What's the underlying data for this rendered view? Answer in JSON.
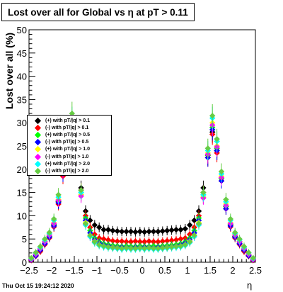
{
  "chart_data": {
    "type": "scatter",
    "title": "Lost over all for Global vs   η at pT > 0.11",
    "xlabel": "η",
    "ylabel": "Lost over all (%)",
    "xlim": [
      -2.5,
      2.5
    ],
    "ylim": [
      0,
      50
    ],
    "x_ticks": [
      "−2.5",
      "−2",
      "−1.5",
      "−1",
      "−0.5",
      "0",
      "0.5",
      "1",
      "1.5",
      "2",
      "2.5"
    ],
    "y_ticks": [
      "0",
      "5",
      "10",
      "15",
      "20",
      "25",
      "30",
      "35",
      "40",
      "45",
      "50"
    ],
    "legend_position": "left",
    "grid": false,
    "timestamp": "Thu Oct 15 19:24:12 2020",
    "series": [
      {
        "name": "(+) with pT/|q| > 0.1",
        "color": "#000000",
        "x": [
          -2.45,
          -2.35,
          -2.25,
          -2.15,
          -2.05,
          -1.95,
          -1.85,
          -1.75,
          -1.65,
          -1.55,
          -1.45,
          -1.35,
          -1.25,
          -1.15,
          -1.05,
          -0.95,
          -0.85,
          -0.75,
          -0.65,
          -0.55,
          -0.45,
          -0.35,
          -0.25,
          -0.15,
          -0.05,
          0.05,
          0.15,
          0.25,
          0.35,
          0.45,
          0.55,
          0.65,
          0.75,
          0.85,
          0.95,
          1.05,
          1.15,
          1.25,
          1.35,
          1.45,
          1.55,
          1.65,
          1.75,
          1.85,
          1.95,
          2.05,
          2.15,
          2.25,
          2.35,
          2.45
        ],
        "values": [
          0.5,
          1.5,
          2.5,
          4,
          5.5,
          8,
          13,
          19,
          25,
          28,
          24,
          16,
          11,
          9,
          8,
          7.5,
          7,
          7,
          6.8,
          6.7,
          6.6,
          6.6,
          6.6,
          6.5,
          6.6,
          6.5,
          6.6,
          6.6,
          6.6,
          6.7,
          6.8,
          6.9,
          7,
          7,
          7.2,
          8,
          9,
          11,
          16,
          23,
          28,
          24,
          18,
          12,
          8,
          5.5,
          4,
          2.5,
          1.5,
          0.5
        ]
      },
      {
        "name": "(-) with pT/|q| > 0.1",
        "color": "#ff0000",
        "x": [
          -2.45,
          -2.35,
          -2.25,
          -2.15,
          -2.05,
          -1.95,
          -1.85,
          -1.75,
          -1.65,
          -1.55,
          -1.45,
          -1.35,
          -1.25,
          -1.15,
          -1.05,
          -0.95,
          -0.85,
          -0.75,
          -0.65,
          -0.55,
          -0.45,
          -0.35,
          -0.25,
          -0.15,
          -0.05,
          0.05,
          0.15,
          0.25,
          0.35,
          0.45,
          0.55,
          0.65,
          0.75,
          0.85,
          0.95,
          1.05,
          1.15,
          1.25,
          1.35,
          1.45,
          1.55,
          1.65,
          1.75,
          1.85,
          1.95,
          2.05,
          2.15,
          2.25,
          2.35,
          2.45
        ],
        "values": [
          0.4,
          1.3,
          2.3,
          3.8,
          5.2,
          7.6,
          12.5,
          18.5,
          24.5,
          27.5,
          23.5,
          15.5,
          10,
          7.5,
          6,
          5.2,
          5,
          4.8,
          4.6,
          4.5,
          4.5,
          4.4,
          4.4,
          4.5,
          4.4,
          4.4,
          4.5,
          4.4,
          4.4,
          4.5,
          4.6,
          4.7,
          4.8,
          5,
          5.2,
          6,
          7.5,
          10,
          15,
          22.5,
          27.5,
          23.5,
          17.5,
          11.5,
          7.6,
          5.2,
          3.8,
          2.3,
          1.3,
          0.4
        ]
      },
      {
        "name": "(+) with pT/|q| > 0.5",
        "color": "#00ff00",
        "x": [
          -2.45,
          -2.35,
          -2.25,
          -2.15,
          -2.05,
          -1.95,
          -1.85,
          -1.75,
          -1.65,
          -1.55,
          -1.45,
          -1.35,
          -1.25,
          -1.15,
          -1.05,
          -0.95,
          -0.85,
          -0.75,
          -0.65,
          -0.55,
          -0.45,
          -0.35,
          -0.25,
          -0.15,
          -0.05,
          0.05,
          0.15,
          0.25,
          0.35,
          0.45,
          0.55,
          0.65,
          0.75,
          0.85,
          0.95,
          1.05,
          1.15,
          1.25,
          1.35,
          1.45,
          1.55,
          1.65,
          1.75,
          1.85,
          1.95,
          2.05,
          2.15,
          2.25,
          2.35,
          2.45
        ],
        "values": [
          0.6,
          1.6,
          2.8,
          4.3,
          5.6,
          8.2,
          13.2,
          19.5,
          25.5,
          29,
          24.5,
          15,
          9.5,
          6.8,
          5.2,
          4.4,
          4,
          3.8,
          3.6,
          3.5,
          3.4,
          3.5,
          3.4,
          3.4,
          3.5,
          3.4,
          3.4,
          3.5,
          3.4,
          3.5,
          3.6,
          3.7,
          3.8,
          4,
          4.4,
          5.2,
          6.8,
          9.5,
          14.5,
          23,
          29,
          24.5,
          18,
          12,
          8.2,
          5.6,
          4.3,
          2.8,
          1.6,
          0.6
        ]
      },
      {
        "name": "(-) with pT/|q| > 0.5",
        "color": "#0000ff",
        "x": [
          -2.45,
          -2.35,
          -2.25,
          -2.15,
          -2.05,
          -1.95,
          -1.85,
          -1.75,
          -1.65,
          -1.55,
          -1.45,
          -1.35,
          -1.25,
          -1.15,
          -1.05,
          -0.95,
          -0.85,
          -0.75,
          -0.65,
          -0.55,
          -0.45,
          -0.35,
          -0.25,
          -0.15,
          -0.05,
          0.05,
          0.15,
          0.25,
          0.35,
          0.45,
          0.55,
          0.65,
          0.75,
          0.85,
          0.95,
          1.05,
          1.15,
          1.25,
          1.35,
          1.45,
          1.55,
          1.65,
          1.75,
          1.85,
          1.95,
          2.05,
          2.15,
          2.25,
          2.35,
          2.45
        ],
        "values": [
          0.5,
          1.4,
          2.6,
          4,
          5.4,
          7.8,
          12.8,
          19,
          25,
          28.5,
          24,
          14.5,
          9,
          6.3,
          4.8,
          4.1,
          3.7,
          3.5,
          3.3,
          3.2,
          3.2,
          3.2,
          3.1,
          3.2,
          3.2,
          3.2,
          3.2,
          3.1,
          3.2,
          3.2,
          3.3,
          3.4,
          3.5,
          3.7,
          4.1,
          4.8,
          6.3,
          9,
          14,
          22.5,
          28.5,
          24,
          17.5,
          11.5,
          7.8,
          5.4,
          4,
          2.6,
          1.4,
          0.5
        ]
      },
      {
        "name": "(+) with pT/|q| > 1.0",
        "color": "#ffff00",
        "x": [
          -2.45,
          -2.35,
          -2.25,
          -2.15,
          -2.05,
          -1.95,
          -1.85,
          -1.75,
          -1.65,
          -1.55,
          -1.45,
          -1.35,
          -1.25,
          -1.15,
          -1.05,
          -0.95,
          -0.85,
          -0.75,
          -0.65,
          -0.55,
          -0.45,
          -0.35,
          -0.25,
          -0.15,
          -0.05,
          0.05,
          0.15,
          0.25,
          0.35,
          0.45,
          0.55,
          0.65,
          0.75,
          0.85,
          0.95,
          1.05,
          1.15,
          1.25,
          1.35,
          1.45,
          1.55,
          1.65,
          1.75,
          1.85,
          1.95,
          2.05,
          2.15,
          2.25,
          2.35,
          2.45
        ],
        "values": [
          0.7,
          1.8,
          3,
          4.5,
          6,
          8.5,
          13.5,
          20,
          26,
          30,
          25,
          14.5,
          8.5,
          5.8,
          4.5,
          3.8,
          3.5,
          3.3,
          3.2,
          3.1,
          3,
          3.1,
          3,
          3,
          3.1,
          3,
          3.1,
          3,
          3,
          3.1,
          3.2,
          3.3,
          3.4,
          3.5,
          3.8,
          4.5,
          5.8,
          8.5,
          14,
          23.5,
          30,
          25,
          18.5,
          12.5,
          8.5,
          6,
          4.5,
          3,
          1.8,
          0.7
        ]
      },
      {
        "name": "(-) with pT/|q| > 1.0",
        "color": "#ff00ff",
        "x": [
          -2.45,
          -2.35,
          -2.25,
          -2.15,
          -2.05,
          -1.95,
          -1.85,
          -1.75,
          -1.65,
          -1.55,
          -1.45,
          -1.35,
          -1.25,
          -1.15,
          -1.05,
          -0.95,
          -0.85,
          -0.75,
          -0.65,
          -0.55,
          -0.45,
          -0.35,
          -0.25,
          -0.15,
          -0.05,
          0.05,
          0.15,
          0.25,
          0.35,
          0.45,
          0.55,
          0.65,
          0.75,
          0.85,
          0.95,
          1.05,
          1.15,
          1.25,
          1.35,
          1.45,
          1.55,
          1.65,
          1.75,
          1.85,
          1.95,
          2.05,
          2.15,
          2.25,
          2.35,
          2.45
        ],
        "values": [
          0.6,
          1.7,
          2.9,
          4.4,
          5.8,
          8.3,
          13.3,
          19.8,
          25.8,
          29.5,
          24.8,
          14.2,
          8.2,
          5.5,
          4.3,
          3.7,
          3.4,
          3.2,
          3.1,
          3,
          2.9,
          3,
          2.9,
          2.9,
          3,
          2.9,
          3,
          2.9,
          2.9,
          3,
          3.1,
          3.2,
          3.3,
          3.4,
          3.7,
          4.3,
          5.5,
          8.2,
          13.8,
          23.2,
          29.5,
          24.8,
          18.2,
          12.2,
          8.3,
          5.8,
          4.4,
          2.9,
          1.7,
          0.6
        ]
      },
      {
        "name": "(+) with pT/|q| > 2.0",
        "color": "#00ffff",
        "x": [
          -2.45,
          -2.35,
          -2.25,
          -2.15,
          -2.05,
          -1.95,
          -1.85,
          -1.75,
          -1.65,
          -1.55,
          -1.45,
          -1.35,
          -1.25,
          -1.15,
          -1.05,
          -0.95,
          -0.85,
          -0.75,
          -0.65,
          -0.55,
          -0.45,
          -0.35,
          -0.25,
          -0.15,
          -0.05,
          0.05,
          0.15,
          0.25,
          0.35,
          0.45,
          0.55,
          0.65,
          0.75,
          0.85,
          0.95,
          1.05,
          1.15,
          1.25,
          1.35,
          1.45,
          1.55,
          1.65,
          1.75,
          1.85,
          1.95,
          2.05,
          2.15,
          2.25,
          2.35,
          2.45
        ],
        "values": [
          0.8,
          2,
          3.2,
          4.8,
          6.2,
          9,
          14,
          21,
          27,
          31,
          26,
          15,
          8,
          5.5,
          4.2,
          3.6,
          3.3,
          3.1,
          3,
          2.9,
          2.8,
          2.9,
          2.8,
          2.8,
          2.9,
          2.8,
          2.9,
          2.8,
          2.8,
          2.9,
          3,
          3.1,
          3.2,
          3.3,
          3.6,
          4.2,
          5.5,
          8,
          14.5,
          24,
          31,
          26,
          19,
          13,
          9,
          6.2,
          4.8,
          3.2,
          2,
          0.8
        ]
      },
      {
        "name": "(-) with pT/|q| > 2.0",
        "color": "#66cc44",
        "x": [
          -2.45,
          -2.35,
          -2.25,
          -2.15,
          -2.05,
          -1.95,
          -1.85,
          -1.75,
          -1.65,
          -1.55,
          -1.45,
          -1.35,
          -1.25,
          -1.15,
          -1.05,
          -0.95,
          -0.85,
          -0.75,
          -0.65,
          -0.55,
          -0.45,
          -0.35,
          -0.25,
          -0.15,
          -0.05,
          0.05,
          0.15,
          0.25,
          0.35,
          0.45,
          0.55,
          0.65,
          0.75,
          0.85,
          0.95,
          1.05,
          1.15,
          1.25,
          1.35,
          1.45,
          1.55,
          1.65,
          1.75,
          1.85,
          1.95,
          2.05,
          2.15,
          2.25,
          2.35,
          2.45
        ],
        "values": [
          0.9,
          2.1,
          3.4,
          5,
          6.4,
          9.3,
          14.5,
          21.5,
          27.5,
          32,
          26.5,
          15.5,
          8.3,
          5.8,
          4.4,
          3.8,
          3.5,
          3.3,
          3.2,
          3.1,
          3,
          3.1,
          3,
          3,
          3.1,
          3,
          3.1,
          3,
          3,
          3.1,
          3.2,
          3.3,
          3.4,
          3.5,
          3.8,
          4.4,
          5.8,
          8.3,
          15,
          24.5,
          31.5,
          26.5,
          19.5,
          13.5,
          9.3,
          6.4,
          5,
          3.4,
          2.1,
          0.9
        ]
      }
    ]
  }
}
